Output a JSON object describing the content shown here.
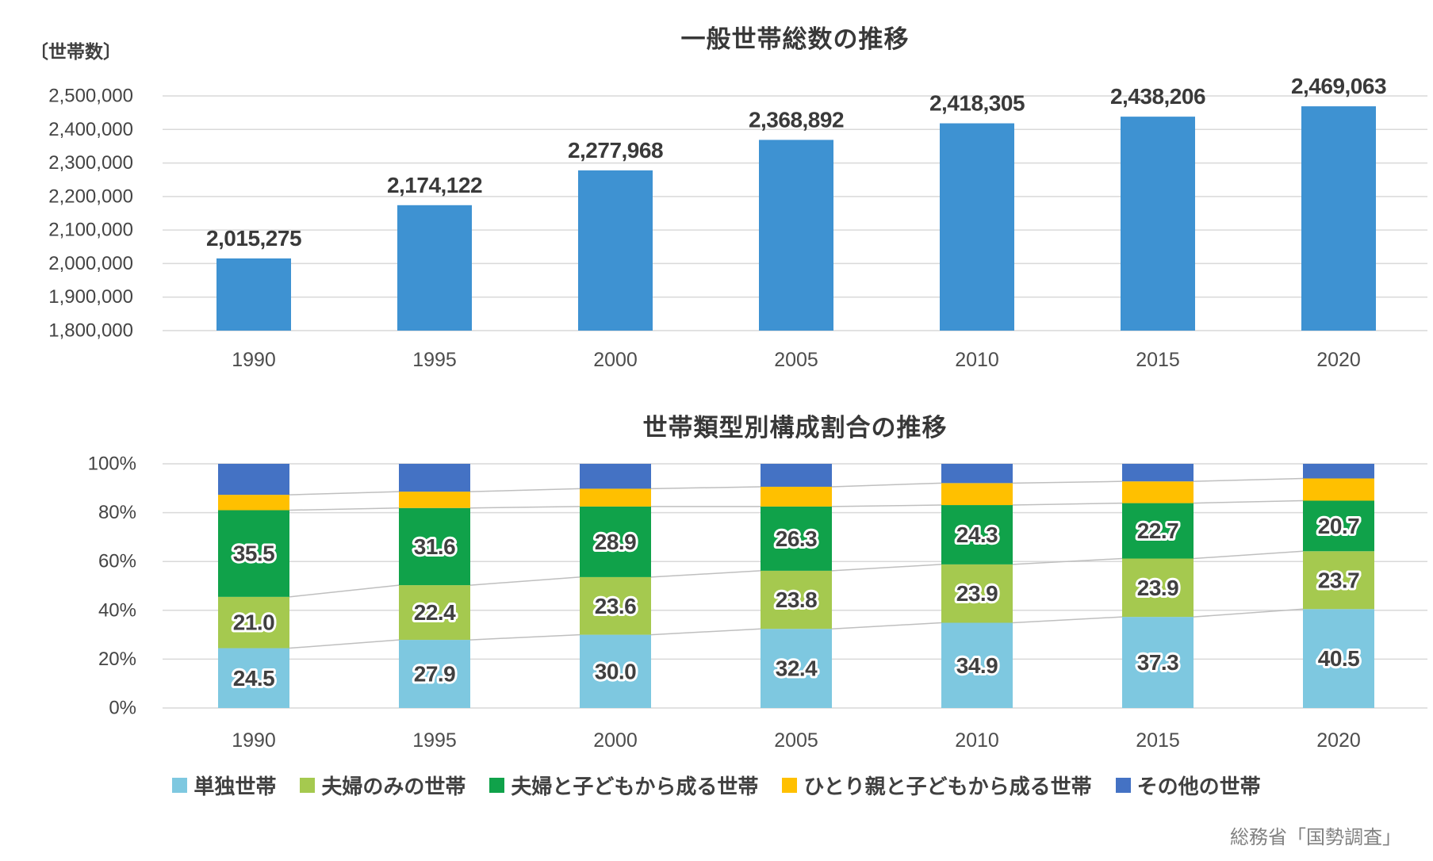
{
  "source": {
    "text": "総務省「国勢調査」"
  },
  "chart_data": [
    {
      "id": "general-households-total",
      "type": "bar",
      "title": "一般世帯総数の推移",
      "unit_label": "〔世帯数〕",
      "categories": [
        "1990",
        "1995",
        "2000",
        "2005",
        "2010",
        "2015",
        "2020"
      ],
      "values": [
        2015275,
        2174122,
        2277968,
        2368892,
        2418305,
        2438206,
        2469063
      ],
      "value_labels": [
        "2,015,275",
        "2,174,122",
        "2,277,968",
        "2,368,892",
        "2,418,305",
        "2,438,206",
        "2,469,063"
      ],
      "ylim": [
        1800000,
        2500000
      ],
      "ytick_interval": 100000,
      "grid": true,
      "legend_position": "none",
      "bar_color": "#3E92D2"
    },
    {
      "id": "household-type-composition",
      "type": "stacked-bar-100",
      "title": "世帯類型別構成割合の推移",
      "categories": [
        "1990",
        "1995",
        "2000",
        "2005",
        "2010",
        "2015",
        "2020"
      ],
      "series": [
        {
          "name": "単独世帯",
          "color": "#7EC8E0",
          "values": [
            24.5,
            27.9,
            30.0,
            32.4,
            34.9,
            37.3,
            40.5
          ],
          "labels_shown": true
        },
        {
          "name": "夫婦のみの世帯",
          "color": "#A5C94F",
          "values": [
            21.0,
            22.4,
            23.6,
            23.8,
            23.9,
            23.9,
            23.7
          ],
          "labels_shown": true
        },
        {
          "name": "夫婦と子どもから成る世帯",
          "color": "#10A24A",
          "values": [
            35.5,
            31.6,
            28.9,
            26.3,
            24.3,
            22.7,
            20.7
          ],
          "labels_shown": true
        },
        {
          "name": "ひとり親と子どもから成る世帯",
          "color": "#FFC000",
          "values": [
            6.3,
            6.7,
            7.3,
            8.1,
            9.0,
            8.9,
            9.1
          ],
          "labels_shown": false
        },
        {
          "name": "その他の世帯",
          "color": "#4472C4",
          "values": [
            12.7,
            11.4,
            10.2,
            9.4,
            7.9,
            7.2,
            6.0
          ],
          "labels_shown": false
        }
      ],
      "ylim": [
        0,
        100
      ],
      "ytick_interval": 20,
      "ytick_labels": [
        "0%",
        "20%",
        "40%",
        "60%",
        "80%",
        "100%"
      ],
      "grid": true,
      "connector_lines": true,
      "legend_position": "bottom"
    }
  ]
}
